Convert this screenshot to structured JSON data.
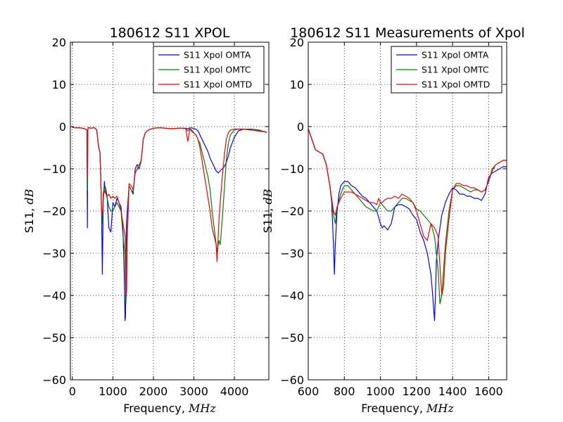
{
  "chart_data": [
    {
      "type": "line",
      "title": "180612 S11 XPOL",
      "xlabel": "Frequency, ",
      "xlabel_unit": "MHz",
      "ylabel": "S11, ",
      "ylabel_unit": "dB",
      "xlim": [
        -50,
        4850
      ],
      "ylim": [
        -60,
        20
      ],
      "xticks": [
        0,
        1000,
        2000,
        3000,
        4000
      ],
      "yticks": [
        -60,
        -50,
        -40,
        -30,
        -20,
        -10,
        0,
        10,
        20
      ],
      "grid": true,
      "legend_position": "top-right",
      "series": [
        {
          "name": "S11 Xpol OMTA",
          "color": "#0000ff",
          "x": [
            0,
            100,
            200,
            300,
            360,
            370,
            380,
            390,
            400,
            450,
            500,
            550,
            600,
            650,
            680,
            700,
            720,
            740,
            760,
            790,
            800,
            830,
            860,
            900,
            950,
            1000,
            1050,
            1100,
            1150,
            1200,
            1250,
            1280,
            1300,
            1310,
            1320,
            1330,
            1340,
            1400,
            1450,
            1500,
            1550,
            1600,
            1650,
            1700,
            1750,
            1800,
            1850,
            1900,
            2000,
            2100,
            2200,
            2300,
            2400,
            2500,
            2600,
            2700,
            2800,
            2850,
            2900,
            2950,
            3000,
            3050,
            3100,
            3150,
            3200,
            3250,
            3300,
            3350,
            3400,
            3450,
            3500,
            3550,
            3600,
            3650,
            3700,
            3750,
            3800,
            3850,
            3900,
            4000,
            4100,
            4200,
            4300,
            4400,
            4500,
            4600,
            4700,
            4800
          ],
          "y": [
            -0.2,
            -0.3,
            -0.3,
            -0.5,
            -0.8,
            -24,
            -1,
            -0.3,
            -0.2,
            -0.4,
            -0.3,
            -0.3,
            -0.8,
            -5,
            -6,
            -12,
            -20,
            -35,
            -18,
            -13,
            -14,
            -15,
            -17,
            -24,
            -25,
            -18,
            -19,
            -17,
            -18,
            -19,
            -25,
            -35,
            -46,
            -45,
            -36,
            -25,
            -22,
            -14,
            -15,
            -16,
            -10,
            -9,
            -10,
            -8,
            -3,
            -1.5,
            -1,
            -0.7,
            -0.4,
            -0.3,
            -0.3,
            -0.4,
            -0.5,
            -0.5,
            -0.4,
            -0.4,
            -0.4,
            -0.5,
            -0.3,
            -0.3,
            -0.5,
            -0.6,
            -1,
            -2,
            -3,
            -4,
            -5,
            -6,
            -7.5,
            -8.5,
            -9.5,
            -10.5,
            -11,
            -10.5,
            -10,
            -9.5,
            -8.5,
            -7,
            -5,
            -2.5,
            -1,
            -0.7,
            -0.6,
            -0.6,
            -0.7,
            -0.8,
            -1.1,
            -1.4
          ]
        },
        {
          "name": "S11 Xpol OMTC",
          "color": "#008000",
          "x": [
            0,
            100,
            200,
            300,
            360,
            370,
            380,
            390,
            400,
            450,
            500,
            550,
            600,
            650,
            680,
            700,
            720,
            740,
            760,
            790,
            800,
            830,
            860,
            900,
            950,
            1000,
            1050,
            1100,
            1150,
            1200,
            1250,
            1300,
            1320,
            1330,
            1340,
            1400,
            1450,
            1500,
            1550,
            1600,
            1650,
            1700,
            1750,
            1800,
            1850,
            1900,
            2000,
            2100,
            2200,
            2300,
            2400,
            2500,
            2600,
            2700,
            2800,
            2850,
            2900,
            2950,
            3000,
            3050,
            3100,
            3150,
            3200,
            3250,
            3300,
            3350,
            3400,
            3450,
            3500,
            3550,
            3580,
            3600,
            3620,
            3650,
            3700,
            3750,
            3800,
            3850,
            3900,
            4000,
            4100,
            4200,
            4300,
            4400,
            4500,
            4600,
            4700,
            4800
          ],
          "y": [
            -0.2,
            -0.3,
            -0.3,
            -0.5,
            -0.8,
            -15,
            -1,
            -0.3,
            -0.2,
            -0.4,
            -0.3,
            -0.3,
            -0.8,
            -5,
            -6,
            -12,
            -20,
            -23,
            -16,
            -14,
            -15,
            -16,
            -17,
            -19,
            -20,
            -20,
            -19,
            -18,
            -19,
            -20,
            -26,
            -30,
            -42,
            -40,
            -28,
            -14,
            -15,
            -15.5,
            -11,
            -10,
            -10,
            -8,
            -3,
            -1.5,
            -1,
            -0.7,
            -0.4,
            -0.3,
            -0.3,
            -0.4,
            -0.5,
            -0.5,
            -0.4,
            -0.4,
            -0.5,
            -1,
            -0.5,
            -0.8,
            -1.5,
            -2,
            -3,
            -4,
            -6,
            -8,
            -10,
            -12,
            -15,
            -20,
            -24,
            -28,
            -30,
            -28,
            -27,
            -28,
            -22,
            -15,
            -8,
            -4,
            -2,
            -0.8,
            -0.6,
            -0.6,
            -0.6,
            -0.7,
            -0.8,
            -0.9,
            -1.1,
            -1.3
          ]
        },
        {
          "name": "S11 Xpol OMTD",
          "color": "#ff0000",
          "x": [
            0,
            100,
            200,
            300,
            360,
            370,
            380,
            390,
            400,
            450,
            500,
            550,
            600,
            650,
            680,
            700,
            720,
            740,
            760,
            790,
            800,
            830,
            860,
            900,
            950,
            1000,
            1050,
            1100,
            1150,
            1200,
            1250,
            1300,
            1320,
            1330,
            1340,
            1350,
            1400,
            1450,
            1500,
            1550,
            1600,
            1650,
            1700,
            1750,
            1800,
            1850,
            1900,
            2000,
            2100,
            2200,
            2300,
            2400,
            2500,
            2600,
            2700,
            2800,
            2850,
            2900,
            2950,
            3000,
            3050,
            3100,
            3150,
            3200,
            3250,
            3300,
            3350,
            3400,
            3450,
            3500,
            3550,
            3570,
            3590,
            3620,
            3650,
            3700,
            3750,
            3800,
            3850,
            3900,
            4000,
            4100,
            4200,
            4300,
            4400,
            4500,
            4600,
            4700,
            4800
          ],
          "y": [
            -0.2,
            -0.3,
            -0.3,
            -0.5,
            -0.8,
            -12,
            -1,
            -0.3,
            -0.2,
            -0.4,
            -0.3,
            -0.3,
            -0.8,
            -5,
            -6,
            -12,
            -20,
            -21,
            -17,
            -15,
            -15.5,
            -16,
            -16.5,
            -16,
            -17,
            -16.5,
            -17,
            -16.5,
            -18,
            -20,
            -23,
            -26,
            -30,
            -40,
            -39,
            -28,
            -13.5,
            -14,
            -15,
            -11,
            -10,
            -9,
            -8,
            -3,
            -1.5,
            -1,
            -0.7,
            -0.4,
            -0.3,
            -0.3,
            -0.4,
            -0.5,
            -0.5,
            -0.4,
            -0.4,
            -0.5,
            -3.5,
            -0.5,
            -1.2,
            -1.5,
            -2,
            -3,
            -5,
            -8,
            -11,
            -14,
            -17,
            -20,
            -24,
            -26,
            -28,
            -32,
            -28,
            -22,
            -18,
            -12,
            -7,
            -3,
            -1.5,
            -0.8,
            -0.6,
            -0.6,
            -0.6,
            -0.7,
            -0.8,
            -0.9,
            -1.1,
            -1.2,
            -1.3
          ]
        }
      ]
    },
    {
      "type": "line",
      "title": "180612 S11 Measurements of Xpol",
      "xlabel": "Frequency, ",
      "xlabel_unit": "MHz",
      "ylabel": "S11, ",
      "ylabel_unit": "dB",
      "xlim": [
        600,
        1700
      ],
      "ylim": [
        -60,
        20
      ],
      "xticks": [
        600,
        800,
        1000,
        1200,
        1400,
        1600
      ],
      "yticks": [
        -60,
        -50,
        -40,
        -30,
        -20,
        -10,
        0,
        10,
        20
      ],
      "grid": true,
      "legend_position": "top-right",
      "series": [
        {
          "name": "S11 Xpol OMTA",
          "color": "#0000ff",
          "x": [
            600,
            620,
            640,
            660,
            680,
            700,
            720,
            730,
            740,
            745,
            750,
            760,
            770,
            780,
            800,
            820,
            840,
            860,
            880,
            900,
            920,
            940,
            960,
            980,
            1000,
            1010,
            1020,
            1030,
            1040,
            1060,
            1080,
            1100,
            1120,
            1140,
            1160,
            1180,
            1200,
            1220,
            1240,
            1260,
            1280,
            1290,
            1300,
            1305,
            1310,
            1320,
            1330,
            1340,
            1360,
            1380,
            1400,
            1420,
            1440,
            1460,
            1480,
            1500,
            1520,
            1540,
            1560,
            1580,
            1600,
            1620,
            1640,
            1660,
            1680,
            1700
          ],
          "y": [
            -0.5,
            -3,
            -5.5,
            -6,
            -6.5,
            -9,
            -14,
            -18,
            -28,
            -35,
            -28,
            -20,
            -16,
            -14,
            -13,
            -13,
            -14,
            -14.5,
            -15.5,
            -16.5,
            -17,
            -18,
            -19,
            -20,
            -23,
            -24,
            -23.5,
            -24,
            -24.5,
            -23,
            -19,
            -18.5,
            -18.5,
            -19,
            -19.5,
            -21,
            -22,
            -25,
            -27,
            -30,
            -35,
            -40,
            -46,
            -40,
            -32,
            -27,
            -24,
            -21,
            -18,
            -16,
            -14.5,
            -15,
            -16,
            -16,
            -16.5,
            -16.5,
            -17,
            -17,
            -17.5,
            -16,
            -12,
            -11,
            -10.5,
            -10,
            -9.5,
            -9.5
          ]
        },
        {
          "name": "S11 Xpol OMTC",
          "color": "#008000",
          "x": [
            600,
            620,
            640,
            660,
            680,
            700,
            720,
            740,
            750,
            760,
            780,
            800,
            820,
            840,
            860,
            880,
            900,
            920,
            940,
            960,
            980,
            1000,
            1020,
            1040,
            1060,
            1080,
            1100,
            1120,
            1140,
            1160,
            1180,
            1200,
            1220,
            1240,
            1260,
            1280,
            1300,
            1320,
            1330,
            1340,
            1360,
            1380,
            1400,
            1420,
            1440,
            1460,
            1480,
            1500,
            1520,
            1540,
            1560,
            1580,
            1600,
            1620,
            1640,
            1660,
            1680,
            1700
          ],
          "y": [
            -0.5,
            -3,
            -5.5,
            -6,
            -6.5,
            -9,
            -14,
            -21,
            -23,
            -19,
            -16,
            -14,
            -14,
            -15,
            -16,
            -17,
            -18,
            -19,
            -19.5,
            -20,
            -20,
            -18,
            -19,
            -20,
            -20,
            -19,
            -18,
            -17,
            -17,
            -17.5,
            -18,
            -19.5,
            -20,
            -21,
            -22,
            -23,
            -26,
            -34,
            -42,
            -40,
            -28,
            -20,
            -15,
            -14,
            -14,
            -14.5,
            -15,
            -15.5,
            -15,
            -15,
            -15.5,
            -15,
            -13,
            -10.5,
            -9,
            -8.5,
            -8,
            -8
          ]
        },
        {
          "name": "S11 Xpol OMTD",
          "color": "#ff0000",
          "x": [
            600,
            620,
            640,
            660,
            680,
            700,
            720,
            740,
            750,
            760,
            780,
            800,
            820,
            840,
            860,
            880,
            900,
            920,
            940,
            960,
            980,
            990,
            1000,
            1010,
            1020,
            1040,
            1060,
            1080,
            1100,
            1120,
            1140,
            1160,
            1180,
            1200,
            1220,
            1240,
            1260,
            1280,
            1300,
            1320,
            1340,
            1350,
            1360,
            1380,
            1400,
            1420,
            1440,
            1460,
            1480,
            1500,
            1520,
            1540,
            1560,
            1580,
            1600,
            1620,
            1640,
            1660,
            1680,
            1700
          ],
          "y": [
            -0.5,
            -3,
            -5.5,
            -6,
            -6.5,
            -9,
            -14,
            -20,
            -21,
            -19,
            -17,
            -15.5,
            -15.5,
            -15.5,
            -16,
            -16.5,
            -17,
            -17.5,
            -18,
            -18,
            -18.5,
            -17,
            -18,
            -18,
            -17.5,
            -17,
            -17,
            -16.5,
            -17,
            -16,
            -16.5,
            -17,
            -18,
            -20,
            -23,
            -26,
            -27,
            -23,
            -24,
            -26,
            -40,
            -38,
            -30,
            -22,
            -15,
            -13.5,
            -13.5,
            -14,
            -14,
            -14.5,
            -14.5,
            -15,
            -15.5,
            -15,
            -13,
            -10,
            -9,
            -8.5,
            -8,
            -8
          ]
        }
      ]
    }
  ]
}
